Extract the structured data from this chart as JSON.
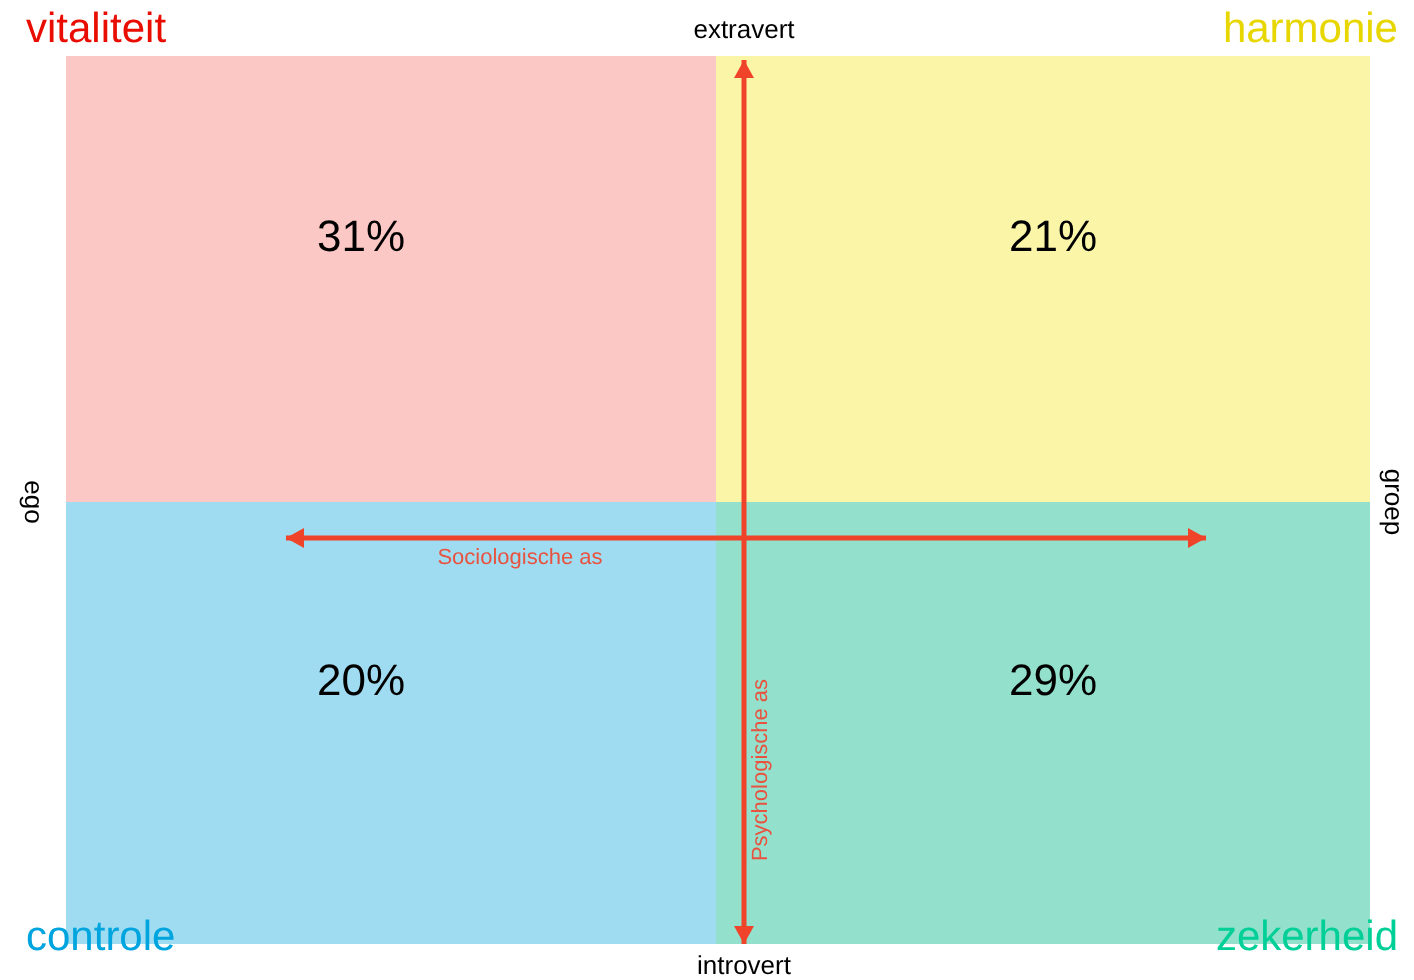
{
  "chart_data": {
    "type": "other",
    "categories": [
      "vitaliteit",
      "harmonie",
      "controle",
      "zekerheid"
    ],
    "values": [
      31,
      21,
      20,
      29
    ],
    "value_labels": [
      "31%",
      "21%",
      "20%",
      "29%"
    ],
    "colors": [
      "#fcc8c5",
      "#fbf5a8",
      "#a0dcf1",
      "#93e1cc"
    ],
    "annotations": [
      "extravert",
      "introvert",
      "ego",
      "groep",
      "Sociologische as",
      "Psychologische as"
    ]
  }
}
